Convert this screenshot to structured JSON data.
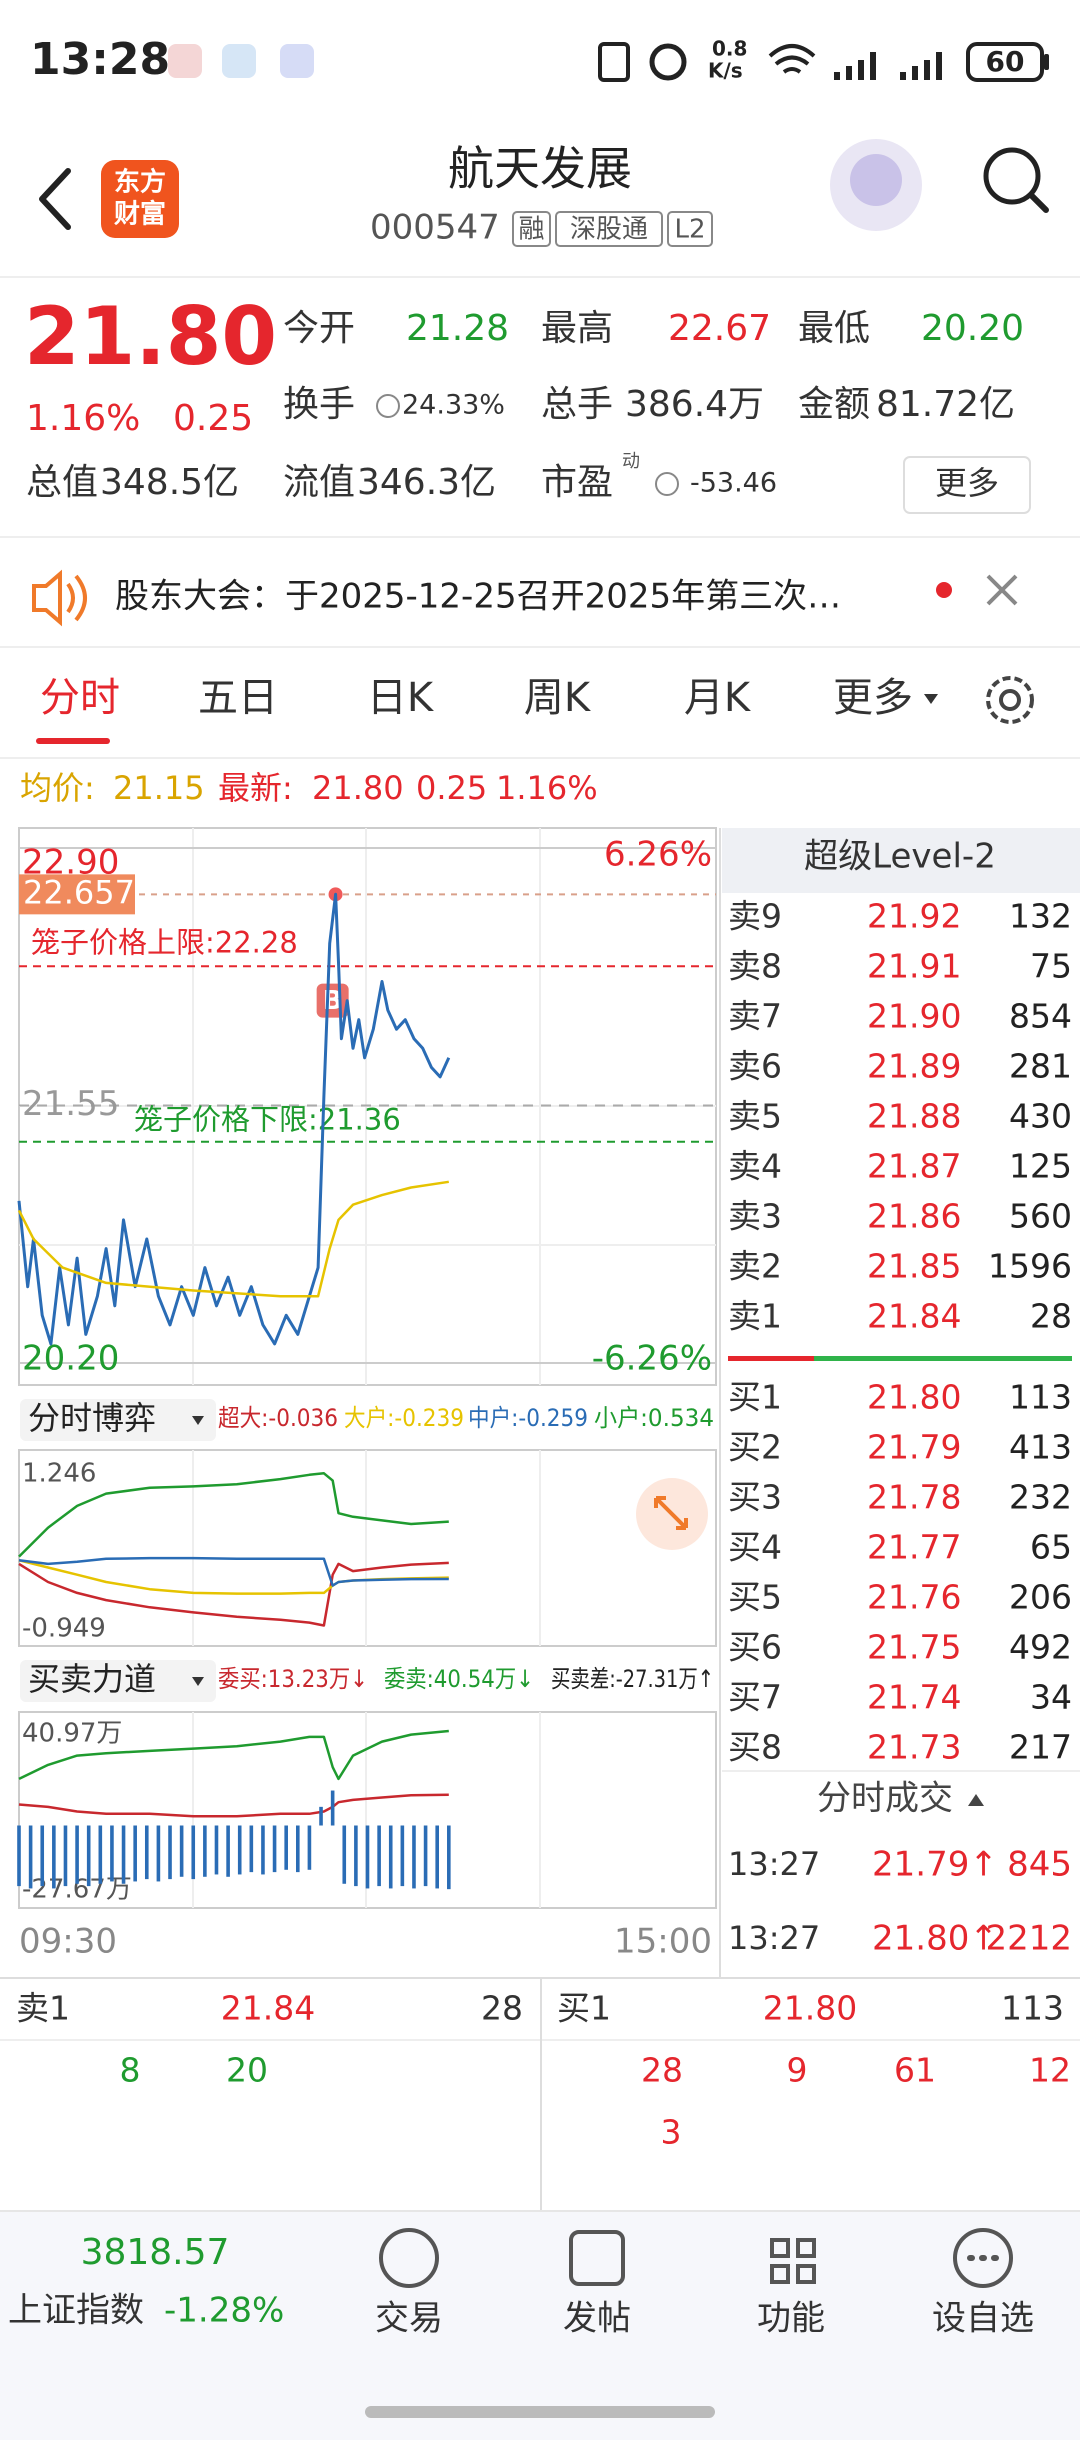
{
  "status_bar": {
    "time": "13:28",
    "speed": "0.8",
    "speed_unit": "K/s",
    "battery": "60"
  },
  "header": {
    "logo": [
      "东方",
      "财富"
    ],
    "title": "航天发展",
    "code": "000547",
    "tags": [
      "融",
      "深股通",
      "L2"
    ]
  },
  "quote": {
    "price": "21.80",
    "change_pct": "1.16%",
    "change": "0.25",
    "stats": [
      {
        "label": "今开",
        "value": "21.28"
      },
      {
        "label": "最高",
        "value": "22.67"
      },
      {
        "label": "最低",
        "value": "20.20"
      },
      {
        "label": "换手",
        "value": "24.33%"
      },
      {
        "label": "总手",
        "value": "386.4万"
      },
      {
        "label": "金额",
        "value": "81.72亿"
      },
      {
        "label": "总值",
        "value": "348.5亿"
      },
      {
        "label": "流值",
        "value": "346.3亿"
      },
      {
        "label": "市盈",
        "sup": "动",
        "value": "-53.46"
      }
    ],
    "more": "更多"
  },
  "notice": "股东大会：于2025-12-25召开2025年第三次…",
  "tabs": [
    "分时",
    "五日",
    "日K",
    "周K",
    "月K",
    "更多"
  ],
  "summary": {
    "avg_label": "均价:",
    "avg": "21.15",
    "last_label": "最新:",
    "last": "21.80",
    "change": "0.25",
    "change_pct": "1.16%"
  },
  "chart_data": [
    {
      "type": "line",
      "xlim": [
        0,
        240
      ],
      "ylim": [
        20.2,
        22.9
      ],
      "yticks": [
        {
          "value": 22.9,
          "label": "22.90"
        },
        21.55,
        {
          "value": 20.2,
          "label": "20.20"
        }
      ],
      "y2lim": [
        -6.26,
        6.26
      ],
      "y2ticks": [
        {
          "value": 6.26,
          "label": "6.26%"
        },
        {
          "value": -6.26,
          "label": "-6.26%"
        }
      ],
      "annotations": [
        {
          "label": "22.657",
          "x": 109,
          "value": 22.657,
          "color": "#f08a5d"
        },
        {
          "label": "笼子价格上限:22.28",
          "value": 22.28,
          "color": "#e5262d"
        },
        {
          "label": "笼子价格下限:21.36",
          "value": 21.36,
          "color": "#1f9b2f"
        },
        {
          "label": "B",
          "x": 108,
          "value": 22.1,
          "color": "#e8706a"
        }
      ],
      "series": [
        {
          "name": "price",
          "color": "#2a6cb5",
          "x": [
            0,
            3,
            5,
            8,
            11,
            14,
            17,
            20,
            23,
            27,
            30,
            33,
            36,
            40,
            44,
            48,
            52,
            56,
            60,
            64,
            68,
            72,
            76,
            80,
            84,
            88,
            92,
            96,
            100,
            103,
            105,
            107,
            109,
            110,
            111,
            113,
            115,
            117,
            119,
            122,
            125,
            127,
            130,
            133,
            136,
            139,
            142,
            145,
            148
          ],
          "values": [
            21.05,
            20.6,
            20.85,
            20.45,
            20.3,
            20.7,
            20.4,
            20.75,
            20.35,
            20.55,
            20.8,
            20.5,
            20.95,
            20.6,
            20.85,
            20.55,
            20.4,
            20.6,
            20.45,
            20.7,
            20.5,
            20.65,
            20.45,
            20.6,
            20.4,
            20.3,
            20.45,
            20.35,
            20.55,
            20.7,
            21.6,
            22.4,
            22.657,
            22.3,
            21.9,
            22.1,
            21.85,
            22.0,
            21.8,
            21.95,
            22.2,
            22.05,
            21.95,
            22.0,
            21.9,
            21.85,
            21.75,
            21.7,
            21.8
          ]
        },
        {
          "name": "avg",
          "color": "#e6c300",
          "x": [
            0,
            5,
            15,
            30,
            60,
            90,
            103,
            107,
            110,
            115,
            125,
            135,
            148
          ],
          "values": [
            21.0,
            20.85,
            20.7,
            20.62,
            20.58,
            20.55,
            20.55,
            20.8,
            20.95,
            21.03,
            21.08,
            21.12,
            21.15
          ]
        }
      ]
    },
    {
      "type": "line",
      "title": "分时博弈",
      "xlim": [
        0,
        240
      ],
      "ylim": [
        -0.949,
        1.246
      ],
      "yticks": [
        1.246,
        -0.949
      ],
      "x": [
        0,
        10,
        20,
        30,
        45,
        60,
        75,
        90,
        100,
        105,
        108,
        110,
        115,
        125,
        135,
        148
      ],
      "series": [
        {
          "name": "超大:-0.036",
          "color": "#c8282e",
          "values": [
            -0.05,
            -0.3,
            -0.45,
            -0.55,
            -0.65,
            -0.72,
            -0.78,
            -0.82,
            -0.86,
            -0.9,
            -0.2,
            -0.05,
            -0.15,
            -0.1,
            -0.06,
            -0.036
          ]
        },
        {
          "name": "大户:-0.239",
          "color": "#e6c300",
          "values": [
            0.0,
            -0.1,
            -0.2,
            -0.3,
            -0.4,
            -0.45,
            -0.46,
            -0.46,
            -0.45,
            -0.45,
            -0.35,
            -0.3,
            -0.28,
            -0.26,
            -0.25,
            -0.239
          ]
        },
        {
          "name": "中户:-0.259",
          "color": "#2a6cb5",
          "values": [
            0.0,
            -0.05,
            -0.02,
            0.02,
            0.03,
            0.03,
            0.02,
            0.02,
            0.02,
            0.02,
            -0.35,
            -0.3,
            -0.28,
            -0.27,
            -0.26,
            -0.259
          ]
        },
        {
          "name": "小户:0.534",
          "color": "#1f9b2f",
          "values": [
            0.05,
            0.45,
            0.75,
            0.92,
            1.0,
            1.02,
            1.05,
            1.12,
            1.18,
            1.2,
            1.1,
            0.65,
            0.6,
            0.55,
            0.5,
            0.534
          ]
        }
      ]
    },
    {
      "type": "line",
      "title": "买卖力道",
      "xlim": [
        0,
        240
      ],
      "ylim": [
        -27.67,
        40.97
      ],
      "yticks": [
        {
          "value": 40.97,
          "label": "40.97万"
        },
        {
          "value": -27.67,
          "label": "-27.67万"
        }
      ],
      "xticks": [
        {
          "value": 0,
          "label": "09:30"
        },
        {
          "value": 240,
          "label": "15:00"
        }
      ],
      "series": [
        {
          "name": "委买:13.23万↓",
          "color": "#c8282e",
          "x": [
            0,
            10,
            20,
            30,
            45,
            60,
            75,
            90,
            100,
            105,
            108,
            110,
            115,
            125,
            135,
            148
          ],
          "values": [
            9,
            8,
            6,
            5,
            5,
            4,
            4,
            5,
            5,
            6,
            8,
            10,
            11,
            12,
            13,
            13.23
          ]
        },
        {
          "name": "委卖:40.54万↓",
          "color": "#1f9b2f",
          "x": [
            0,
            10,
            20,
            30,
            45,
            60,
            75,
            90,
            100,
            105,
            108,
            110,
            115,
            125,
            135,
            148
          ],
          "values": [
            20,
            26,
            30,
            31,
            32,
            33,
            34,
            36,
            38,
            38,
            25,
            20,
            30,
            36,
            39,
            40.54
          ]
        },
        {
          "name": "买卖差:-27.31万↑",
          "color": "#2a6cb5",
          "type": "bar",
          "x": [
            0,
            4,
            8,
            12,
            16,
            20,
            24,
            28,
            32,
            36,
            40,
            44,
            48,
            52,
            56,
            60,
            64,
            68,
            72,
            76,
            80,
            84,
            88,
            92,
            96,
            100,
            104,
            108,
            112,
            116,
            120,
            124,
            128,
            132,
            136,
            140,
            144,
            148
          ],
          "values": [
            -26,
            -27,
            -26,
            -27,
            -26,
            -25,
            -26,
            -25,
            -24,
            -25,
            -24,
            -23,
            -24,
            -23,
            -22,
            -23,
            -22,
            -21,
            -22,
            -21,
            -20,
            -21,
            -20,
            -19,
            -20,
            -19,
            8,
            15,
            -25,
            -26,
            -27,
            -26,
            -27,
            -26,
            -27,
            -26,
            -27,
            -27.31
          ]
        }
      ]
    }
  ],
  "level2": {
    "title": "超级Level-2",
    "asks": [
      {
        "label": "卖9",
        "price": "21.92",
        "volume": "132"
      },
      {
        "label": "卖8",
        "price": "21.91",
        "volume": "75"
      },
      {
        "label": "卖7",
        "price": "21.90",
        "volume": "854"
      },
      {
        "label": "卖6",
        "price": "21.89",
        "volume": "281"
      },
      {
        "label": "卖5",
        "price": "21.88",
        "volume": "430"
      },
      {
        "label": "卖4",
        "price": "21.87",
        "volume": "125"
      },
      {
        "label": "卖3",
        "price": "21.86",
        "volume": "560"
      },
      {
        "label": "卖2",
        "price": "21.85",
        "volume": "1596"
      },
      {
        "label": "卖1",
        "price": "21.84",
        "volume": "28"
      }
    ],
    "bids": [
      {
        "label": "买1",
        "price": "21.80",
        "volume": "113"
      },
      {
        "label": "买2",
        "price": "21.79",
        "volume": "413"
      },
      {
        "label": "买3",
        "price": "21.78",
        "volume": "232"
      },
      {
        "label": "买4",
        "price": "21.77",
        "volume": "65"
      },
      {
        "label": "买5",
        "price": "21.76",
        "volume": "206"
      },
      {
        "label": "买6",
        "price": "21.75",
        "volume": "492"
      },
      {
        "label": "买7",
        "price": "21.74",
        "volume": "34"
      },
      {
        "label": "买8",
        "price": "21.73",
        "volume": "217"
      }
    ],
    "trades_title": "分时成交",
    "trades": [
      {
        "time": "13:27",
        "price": "21.79↑",
        "volume": "845"
      },
      {
        "time": "13:27",
        "price": "21.80↑",
        "volume": "2212"
      }
    ]
  },
  "queue": {
    "ask": {
      "label": "卖1",
      "price": "21.84",
      "volume": "28",
      "orders": [
        "8",
        "20"
      ]
    },
    "bid": {
      "label": "买1",
      "price": "21.80",
      "volume": "113",
      "orders": [
        "28",
        "9",
        "61",
        "12",
        "3"
      ]
    }
  },
  "nav": {
    "index_value": "3818.57",
    "index_name": "上证指数",
    "index_change": "-1.28%",
    "items": [
      "交易",
      "发帖",
      "功能",
      "设自选"
    ]
  }
}
